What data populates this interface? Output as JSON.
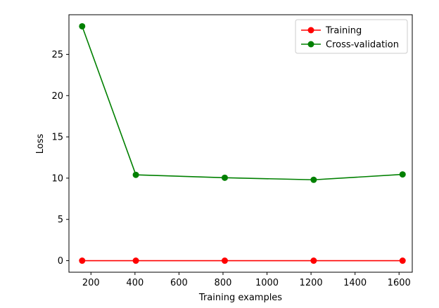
{
  "chart_data": {
    "type": "line",
    "xlabel": "Training examples",
    "ylabel": "Loss",
    "xlim": [
      100,
      1660
    ],
    "ylim": [
      -1.4,
      29.8
    ],
    "xticks": [
      200,
      400,
      600,
      800,
      1000,
      1200,
      1400,
      1600
    ],
    "yticks": [
      0,
      5,
      10,
      15,
      20,
      25
    ],
    "grid": false,
    "legend_position": "top-right",
    "x": [
      160,
      404,
      808,
      1212,
      1616
    ],
    "series": [
      {
        "name": "Training",
        "color": "#ff0000",
        "values": [
          0,
          0,
          0,
          0,
          0
        ]
      },
      {
        "name": "Cross-validation",
        "color": "#008000",
        "values": [
          28.4,
          10.4,
          10.05,
          9.8,
          10.45
        ]
      }
    ]
  }
}
